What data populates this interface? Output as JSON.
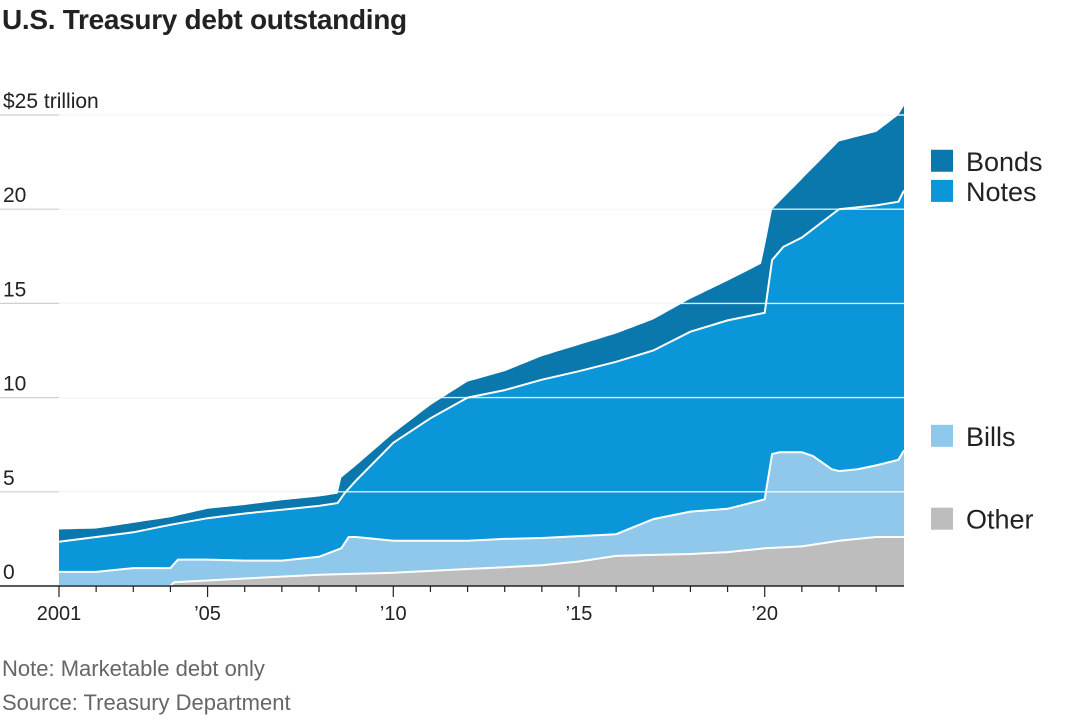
{
  "chart_data": {
    "type": "area",
    "stacked": true,
    "title": "U.S. Treasury debt outstanding",
    "ylabel": "",
    "y_unit_label": "$25 trillion",
    "ylim": [
      0,
      25
    ],
    "xlim": [
      2001,
      2023.75
    ],
    "yticks": [
      0,
      5,
      10,
      15,
      20,
      25
    ],
    "ytick_labels": [
      "0",
      "5",
      "10",
      "15",
      "20",
      "$25 trillion"
    ],
    "xticks": [
      2001,
      2005,
      2010,
      2015,
      2020
    ],
    "xtick_labels": [
      "2001",
      "’05",
      "’10",
      "’15",
      "’20"
    ],
    "grid": "horizontal",
    "legend_position": "right",
    "series": [
      {
        "name": "Other",
        "color": "#bdbdbd",
        "x": [
          2001,
          2004,
          2004.1,
          2006,
          2008,
          2009,
          2010,
          2012,
          2013,
          2014,
          2015,
          2016,
          2017,
          2018,
          2019,
          2020,
          2021,
          2022,
          2023,
          2023.75
        ],
        "values": [
          0,
          0,
          0.2,
          0.4,
          0.6,
          0.65,
          0.7,
          0.9,
          1.0,
          1.1,
          1.3,
          1.6,
          1.65,
          1.7,
          1.8,
          2.0,
          2.1,
          2.4,
          2.6,
          2.6
        ]
      },
      {
        "name": "Bills",
        "color": "#8fc8eb",
        "x": [
          2001,
          2002,
          2003,
          2004,
          2004.2,
          2005,
          2006,
          2007,
          2008,
          2008.6,
          2008.8,
          2009,
          2009.5,
          2010,
          2011,
          2012,
          2013,
          2014,
          2015,
          2016,
          2017,
          2018,
          2019,
          2020,
          2020.2,
          2020.4,
          2021,
          2021.3,
          2021.8,
          2022,
          2022.5,
          2023,
          2023.6,
          2023.75
        ],
        "values": [
          0.75,
          0.75,
          0.95,
          0.95,
          1.4,
          1.4,
          1.35,
          1.35,
          1.55,
          2.0,
          2.6,
          2.6,
          2.5,
          2.4,
          2.4,
          2.4,
          2.5,
          2.55,
          2.65,
          2.75,
          3.55,
          3.95,
          4.1,
          4.6,
          7.0,
          7.1,
          7.1,
          6.9,
          6.2,
          6.1,
          6.2,
          6.4,
          6.7,
          7.2
        ]
      },
      {
        "name": "Notes",
        "color": "#0a96d8",
        "x": [
          2001,
          2002,
          2003,
          2004,
          2005,
          2006,
          2007,
          2008,
          2008.5,
          2008.7,
          2009,
          2010,
          2011,
          2012,
          2013,
          2014,
          2015,
          2016,
          2017,
          2018,
          2019,
          2020,
          2020.2,
          2020.5,
          2021,
          2022,
          2023,
          2023.6,
          2023.75
        ],
        "values": [
          2.35,
          2.6,
          2.85,
          3.25,
          3.6,
          3.85,
          4.05,
          4.25,
          4.4,
          4.95,
          5.6,
          7.6,
          8.9,
          10.0,
          10.4,
          10.95,
          11.4,
          11.9,
          12.5,
          13.5,
          14.1,
          14.5,
          17.3,
          18.0,
          18.5,
          20.0,
          20.2,
          20.4,
          21.0
        ]
      },
      {
        "name": "Bonds",
        "color": "#0a77ad",
        "x": [
          2001,
          2002,
          2003,
          2004,
          2005,
          2006,
          2007,
          2008,
          2008.5,
          2008.6,
          2009,
          2010,
          2011,
          2012,
          2013,
          2014,
          2015,
          2016,
          2017,
          2018,
          2019,
          2019.9,
          2020,
          2020.2,
          2021,
          2022,
          2023,
          2023.6,
          2023.75
        ],
        "values": [
          3.0,
          3.05,
          3.35,
          3.65,
          4.1,
          4.3,
          4.55,
          4.75,
          4.9,
          5.75,
          6.4,
          8.1,
          9.6,
          10.85,
          11.4,
          12.2,
          12.8,
          13.4,
          14.15,
          15.25,
          16.2,
          17.1,
          18.0,
          20.0,
          21.6,
          23.6,
          24.1,
          25.0,
          25.5
        ]
      }
    ],
    "legend": [
      "Bonds",
      "Notes",
      "Bills",
      "Other"
    ],
    "note": "Note: Marketable debt only",
    "source": "Source: Treasury Department"
  }
}
